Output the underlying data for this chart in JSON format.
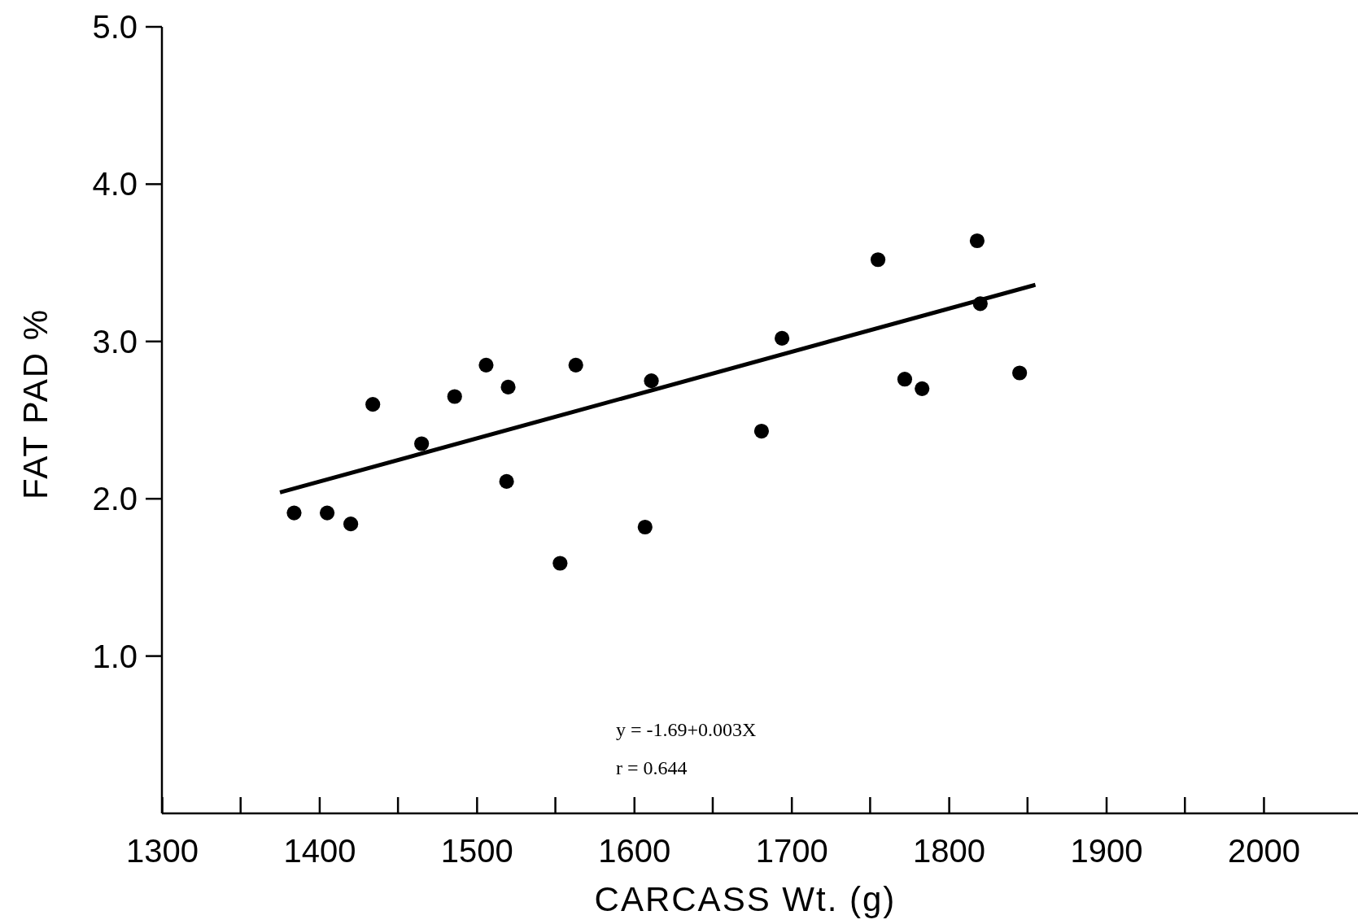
{
  "chart_data": {
    "type": "scatter",
    "xlabel": "CARCASS Wt. (g)",
    "ylabel": "FAT PAD %",
    "xlim": [
      1300,
      2060
    ],
    "ylim": [
      0,
      5
    ],
    "xticks": [
      1300,
      1400,
      1500,
      1600,
      1700,
      1800,
      1900,
      2000
    ],
    "yticks": [
      {
        "value": 1,
        "label": "1.0"
      },
      {
        "value": 2,
        "label": "2.0"
      },
      {
        "value": 3,
        "label": "3.0"
      },
      {
        "value": 4,
        "label": "4.0"
      },
      {
        "value": 5,
        "label": "5.0"
      }
    ],
    "grid": false,
    "marker": "circle",
    "annotations": [
      "y = -1.69+0.003X",
      "r = 0.644"
    ],
    "series": [
      {
        "color": "#000000",
        "x": [
          1384,
          1405,
          1420,
          1434,
          1465,
          1486,
          1506,
          1520,
          1519,
          1553,
          1563,
          1607,
          1611,
          1681,
          1694,
          1755,
          1772,
          1783,
          1818,
          1820,
          1845
        ],
        "values": [
          1.91,
          1.91,
          1.84,
          2.6,
          2.35,
          2.65,
          2.85,
          2.71,
          2.11,
          1.59,
          2.85,
          1.82,
          2.75,
          2.43,
          3.02,
          3.52,
          2.76,
          2.7,
          3.64,
          3.24,
          2.8
        ]
      },
      {
        "type": "line",
        "marker": "none",
        "color": "#000000",
        "x": [
          1375,
          1855
        ],
        "values": [
          2.04,
          3.36
        ]
      }
    ]
  }
}
